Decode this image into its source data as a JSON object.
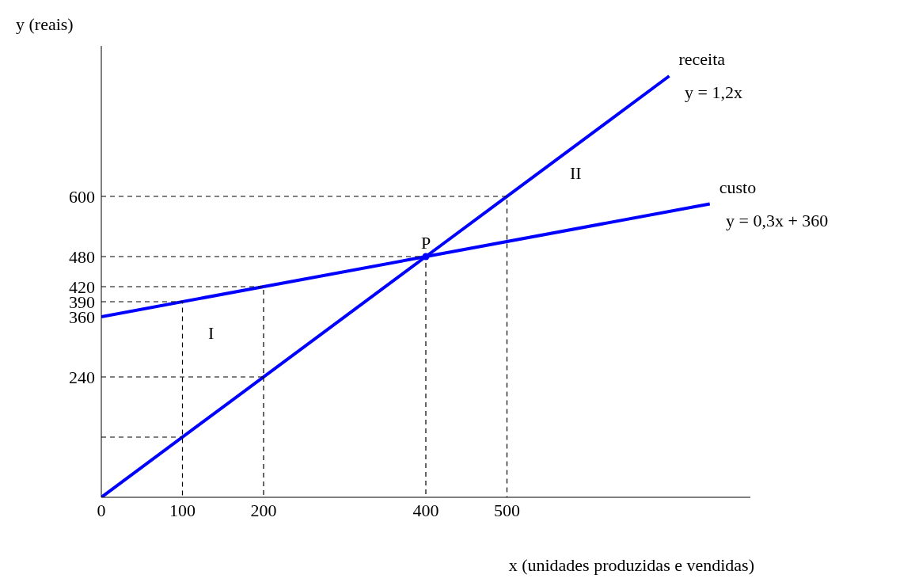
{
  "chart_data": {
    "type": "line",
    "xlabel": "x (unidades produzidas e vendidas)",
    "ylabel": "y (reais)",
    "xlim": [
      0,
      800
    ],
    "ylim": [
      0,
      900
    ],
    "xticks": [
      0,
      100,
      200,
      400,
      500
    ],
    "yticks": [
      240,
      360,
      390,
      420,
      480,
      600
    ],
    "grid": false,
    "legend": false,
    "marker": "none",
    "series": [
      {
        "name": "receita",
        "color": "#0000ff",
        "x": [
          0,
          400,
          700
        ],
        "values": [
          0,
          480,
          840
        ]
      },
      {
        "name": "custo",
        "color": "#0000ff",
        "x": [
          0,
          400,
          750
        ],
        "values": [
          360,
          480,
          585
        ]
      },
      {
        "color": "#000000",
        "line_style": "dashed",
        "x": [
          0,
          100,
          100
        ],
        "values": [
          390,
          390,
          0
        ]
      },
      {
        "color": "#000000",
        "line_style": "dashed",
        "x": [
          0,
          200,
          200
        ],
        "values": [
          420,
          420,
          0
        ]
      },
      {
        "color": "#000000",
        "line_style": "dashed",
        "x": [
          0,
          400,
          400
        ],
        "values": [
          480,
          480,
          0
        ]
      },
      {
        "color": "#000000",
        "line_style": "dashed",
        "x": [
          0,
          500,
          500
        ],
        "values": [
          600,
          600,
          0
        ]
      },
      {
        "color": "#000000",
        "line_style": "dashed",
        "x": [
          0,
          100
        ],
        "values": [
          120,
          120
        ]
      },
      {
        "color": "#000000",
        "line_style": "dashed",
        "x": [
          0,
          200
        ],
        "values": [
          240,
          240
        ]
      },
      {
        "type": "scatter",
        "marker": "circle",
        "color": "#0000ff",
        "x": [
          400
        ],
        "values": [
          480
        ]
      }
    ],
    "annotations": [
      "y = 1,2x",
      "y = 0,3x + 360",
      {
        "text": "P",
        "x": 400,
        "y": 480
      },
      "I",
      "II"
    ]
  }
}
